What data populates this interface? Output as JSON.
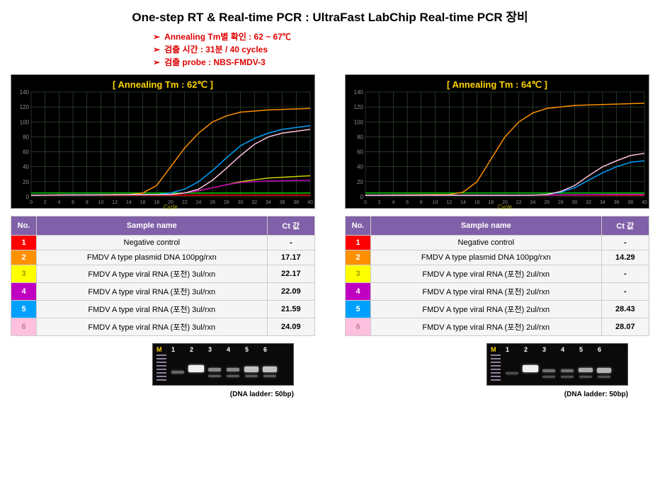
{
  "title": "One-step RT & Real-time PCR : UltraFast LabChip Real-time PCR 장비",
  "bullets": [
    "Annealing Tm별 확인 : 62 ~ 67℃",
    "검출 시간 : 31분 / 40 cycles",
    "검출 probe : NBS-FMDV-3"
  ],
  "bullet_color": "#e00000",
  "panels": [
    {
      "chart_title": "[ Annealing Tm : 62℃ ]",
      "chart": {
        "type": "line",
        "bg": "#000000",
        "xlim": [
          0,
          40
        ],
        "xtick_step": 2,
        "ylim": [
          0,
          140
        ],
        "ytick_step": 20,
        "xlabel": "Cycle",
        "grid_color": "#4a6a4a",
        "threshold": {
          "y": 5,
          "color": "#00d000"
        },
        "series": [
          {
            "name": "1",
            "color": "#ff0000",
            "pts": [
              [
                0,
                2
              ],
              [
                10,
                2
              ],
              [
                20,
                2
              ],
              [
                30,
                2
              ],
              [
                40,
                2
              ]
            ]
          },
          {
            "name": "2",
            "color": "#ff9000",
            "pts": [
              [
                0,
                2
              ],
              [
                14,
                3
              ],
              [
                16,
                5
              ],
              [
                18,
                15
              ],
              [
                20,
                40
              ],
              [
                22,
                65
              ],
              [
                24,
                85
              ],
              [
                26,
                100
              ],
              [
                28,
                108
              ],
              [
                30,
                113
              ],
              [
                34,
                116
              ],
              [
                40,
                118
              ]
            ]
          },
          {
            "name": "3",
            "color": "#d0d000",
            "pts": [
              [
                0,
                2
              ],
              [
                20,
                3
              ],
              [
                22,
                5
              ],
              [
                24,
                8
              ],
              [
                26,
                12
              ],
              [
                28,
                16
              ],
              [
                30,
                20
              ],
              [
                34,
                25
              ],
              [
                40,
                28
              ]
            ]
          },
          {
            "name": "4",
            "color": "#c000c0",
            "pts": [
              [
                0,
                2
              ],
              [
                20,
                3
              ],
              [
                22,
                5
              ],
              [
                24,
                8
              ],
              [
                26,
                12
              ],
              [
                28,
                16
              ],
              [
                30,
                19
              ],
              [
                34,
                21
              ],
              [
                40,
                22
              ]
            ]
          },
          {
            "name": "5",
            "color": "#00a0ff",
            "pts": [
              [
                0,
                2
              ],
              [
                18,
                3
              ],
              [
                20,
                5
              ],
              [
                22,
                10
              ],
              [
                24,
                20
              ],
              [
                26,
                35
              ],
              [
                28,
                52
              ],
              [
                30,
                68
              ],
              [
                32,
                78
              ],
              [
                34,
                85
              ],
              [
                36,
                90
              ],
              [
                40,
                95
              ]
            ]
          },
          {
            "name": "6",
            "color": "#ffc0e0",
            "pts": [
              [
                0,
                2
              ],
              [
                20,
                3
              ],
              [
                22,
                5
              ],
              [
                24,
                10
              ],
              [
                26,
                22
              ],
              [
                28,
                38
              ],
              [
                30,
                55
              ],
              [
                32,
                70
              ],
              [
                34,
                80
              ],
              [
                36,
                85
              ],
              [
                40,
                90
              ]
            ]
          }
        ]
      },
      "table": {
        "headers": [
          "No.",
          "Sample name",
          "Ct 값"
        ],
        "row_colors": [
          "#ff0000",
          "#ff9000",
          "#ffff00",
          "#c000c0",
          "#00a0ff",
          "#ffc0e0"
        ],
        "row_textcolor": [
          "#ffffff",
          "#ffffff",
          "#a0a000",
          "#ffffff",
          "#ffffff",
          "#c08090"
        ],
        "rows": [
          [
            "1",
            "Negative control",
            "-"
          ],
          [
            "2",
            "FMDV A type plasmid DNA 100pg/rxn",
            "17.17"
          ],
          [
            "3",
            "FMDV A type viral RNA (포천) 3ul/rxn",
            "22.17"
          ],
          [
            "4",
            "FMDV A type viral RNA (포천) 3ul/rxn",
            "22.09"
          ],
          [
            "5",
            "FMDV A type viral RNA (포천) 3ul/rxn",
            "21.59"
          ],
          [
            "6",
            "FMDV A type viral RNA (포천) 3ul/rxn",
            "24.09"
          ]
        ]
      },
      "gel": {
        "caption": "(DNA ladder: 50bp)",
        "lanes": [
          "M",
          "1",
          "2",
          "3",
          "4",
          "5",
          "6"
        ],
        "bands": [
          {
            "lane": 1,
            "y": 38,
            "w": 18,
            "h": 4,
            "intensity": 0.4
          },
          {
            "lane": 2,
            "y": 30,
            "w": 22,
            "h": 10,
            "intensity": 1.0
          },
          {
            "lane": 3,
            "y": 34,
            "w": 18,
            "h": 5,
            "intensity": 0.55
          },
          {
            "lane": 3,
            "y": 44,
            "w": 18,
            "h": 3,
            "intensity": 0.35
          },
          {
            "lane": 4,
            "y": 34,
            "w": 18,
            "h": 5,
            "intensity": 0.55
          },
          {
            "lane": 4,
            "y": 44,
            "w": 18,
            "h": 3,
            "intensity": 0.35
          },
          {
            "lane": 5,
            "y": 32,
            "w": 20,
            "h": 8,
            "intensity": 0.8
          },
          {
            "lane": 5,
            "y": 44,
            "w": 18,
            "h": 3,
            "intensity": 0.35
          },
          {
            "lane": 6,
            "y": 32,
            "w": 20,
            "h": 8,
            "intensity": 0.8
          },
          {
            "lane": 6,
            "y": 44,
            "w": 18,
            "h": 3,
            "intensity": 0.35
          }
        ]
      }
    },
    {
      "chart_title": "[ Annealing Tm : 64℃ ]",
      "chart": {
        "type": "line",
        "bg": "#000000",
        "xlim": [
          0,
          40
        ],
        "xtick_step": 2,
        "ylim": [
          0,
          140
        ],
        "ytick_step": 20,
        "xlabel": "Cycle",
        "grid_color": "#4a6a4a",
        "threshold": {
          "y": 5,
          "color": "#00d000"
        },
        "series": [
          {
            "name": "1",
            "color": "#ff0000",
            "pts": [
              [
                0,
                2
              ],
              [
                10,
                2
              ],
              [
                20,
                2
              ],
              [
                30,
                2
              ],
              [
                40,
                2
              ]
            ]
          },
          {
            "name": "2",
            "color": "#ff9000",
            "pts": [
              [
                0,
                2
              ],
              [
                12,
                3
              ],
              [
                14,
                6
              ],
              [
                16,
                20
              ],
              [
                18,
                50
              ],
              [
                20,
                80
              ],
              [
                22,
                100
              ],
              [
                24,
                112
              ],
              [
                26,
                118
              ],
              [
                30,
                122
              ],
              [
                40,
                125
              ]
            ]
          },
          {
            "name": "3",
            "color": "#d0d000",
            "pts": [
              [
                0,
                2
              ],
              [
                20,
                2
              ],
              [
                30,
                2.5
              ],
              [
                40,
                3
              ]
            ]
          },
          {
            "name": "4",
            "color": "#c000c0",
            "pts": [
              [
                0,
                2
              ],
              [
                20,
                2
              ],
              [
                30,
                2.5
              ],
              [
                40,
                3
              ]
            ]
          },
          {
            "name": "5",
            "color": "#00a0ff",
            "pts": [
              [
                0,
                2
              ],
              [
                24,
                2
              ],
              [
                26,
                3
              ],
              [
                28,
                6
              ],
              [
                30,
                12
              ],
              [
                32,
                22
              ],
              [
                34,
                32
              ],
              [
                36,
                40
              ],
              [
                38,
                46
              ],
              [
                40,
                48
              ]
            ]
          },
          {
            "name": "6",
            "color": "#ffc0e0",
            "pts": [
              [
                0,
                2
              ],
              [
                24,
                2
              ],
              [
                26,
                3
              ],
              [
                28,
                7
              ],
              [
                30,
                15
              ],
              [
                32,
                28
              ],
              [
                34,
                40
              ],
              [
                36,
                48
              ],
              [
                38,
                55
              ],
              [
                40,
                58
              ]
            ]
          }
        ]
      },
      "table": {
        "headers": [
          "No.",
          "Sample name",
          "Ct 값"
        ],
        "row_colors": [
          "#ff0000",
          "#ff9000",
          "#ffff00",
          "#c000c0",
          "#00a0ff",
          "#ffc0e0"
        ],
        "row_textcolor": [
          "#ffffff",
          "#ffffff",
          "#a0a000",
          "#ffffff",
          "#ffffff",
          "#c08090"
        ],
        "rows": [
          [
            "1",
            "Negative control",
            "-"
          ],
          [
            "2",
            "FMDV A type plasmid DNA 100pg/rxn",
            "14.29"
          ],
          [
            "3",
            "FMDV A type viral RNA (포천) 2ul/rxn",
            "-"
          ],
          [
            "4",
            "FMDV A type viral RNA (포천) 2ul/rxn",
            "-"
          ],
          [
            "5",
            "FMDV A type viral RNA (포천) 2ul/rxn",
            "28.43"
          ],
          [
            "6",
            "FMDV A type viral RNA (포천) 2ul/rxn",
            "28.07"
          ]
        ]
      },
      "gel": {
        "caption": "(DNA ladder: 50bp)",
        "lanes": [
          "M",
          "1",
          "2",
          "3",
          "4",
          "5",
          "6"
        ],
        "bands": [
          {
            "lane": 1,
            "y": 40,
            "w": 18,
            "h": 3,
            "intensity": 0.3
          },
          {
            "lane": 2,
            "y": 30,
            "w": 22,
            "h": 10,
            "intensity": 1.0
          },
          {
            "lane": 3,
            "y": 36,
            "w": 18,
            "h": 4,
            "intensity": 0.45
          },
          {
            "lane": 3,
            "y": 45,
            "w": 18,
            "h": 3,
            "intensity": 0.3
          },
          {
            "lane": 4,
            "y": 36,
            "w": 18,
            "h": 4,
            "intensity": 0.45
          },
          {
            "lane": 4,
            "y": 45,
            "w": 18,
            "h": 3,
            "intensity": 0.3
          },
          {
            "lane": 5,
            "y": 34,
            "w": 20,
            "h": 6,
            "intensity": 0.7
          },
          {
            "lane": 5,
            "y": 45,
            "w": 18,
            "h": 3,
            "intensity": 0.3
          },
          {
            "lane": 6,
            "y": 34,
            "w": 20,
            "h": 7,
            "intensity": 0.75
          },
          {
            "lane": 6,
            "y": 45,
            "w": 18,
            "h": 3,
            "intensity": 0.3
          }
        ]
      }
    }
  ]
}
